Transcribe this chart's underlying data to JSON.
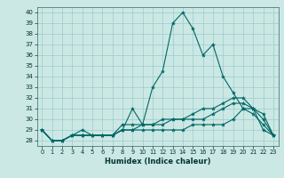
{
  "xlabel": "Humidex (Indice chaleur)",
  "background_color": "#cce8e4",
  "grid_color": "#99cccc",
  "line_color": "#006666",
  "xlim": [
    -0.5,
    23.5
  ],
  "ylim": [
    27.5,
    40.5
  ],
  "yticks": [
    28,
    29,
    30,
    31,
    32,
    33,
    34,
    35,
    36,
    37,
    38,
    39,
    40
  ],
  "xticks": [
    0,
    1,
    2,
    3,
    4,
    5,
    6,
    7,
    8,
    9,
    10,
    11,
    12,
    13,
    14,
    15,
    16,
    17,
    18,
    19,
    20,
    21,
    22,
    23
  ],
  "lines": [
    [
      29,
      28,
      28,
      28.5,
      28.5,
      28.5,
      28.5,
      28.5,
      29,
      31,
      29.5,
      33,
      34.5,
      39,
      40,
      38.5,
      36,
      37,
      34,
      32.5,
      31,
      31,
      29,
      28.5
    ],
    [
      29,
      28,
      28,
      28.5,
      28.5,
      28.5,
      28.5,
      28.5,
      29.5,
      29.5,
      29.5,
      29.5,
      29.5,
      30,
      30,
      30,
      30,
      30.5,
      31,
      31.5,
      31.5,
      31,
      30,
      28.5
    ],
    [
      29,
      28,
      28,
      28.5,
      28.5,
      28.5,
      28.5,
      28.5,
      29,
      29,
      29.5,
      29.5,
      30,
      30,
      30,
      30.5,
      31,
      31,
      31.5,
      32,
      32,
      31,
      30.5,
      28.5
    ],
    [
      29,
      28,
      28,
      28.5,
      29,
      28.5,
      28.5,
      28.5,
      29,
      29,
      29,
      29,
      29,
      29,
      29,
      29.5,
      29.5,
      29.5,
      29.5,
      30,
      31,
      30.5,
      29.5,
      28.5
    ]
  ]
}
